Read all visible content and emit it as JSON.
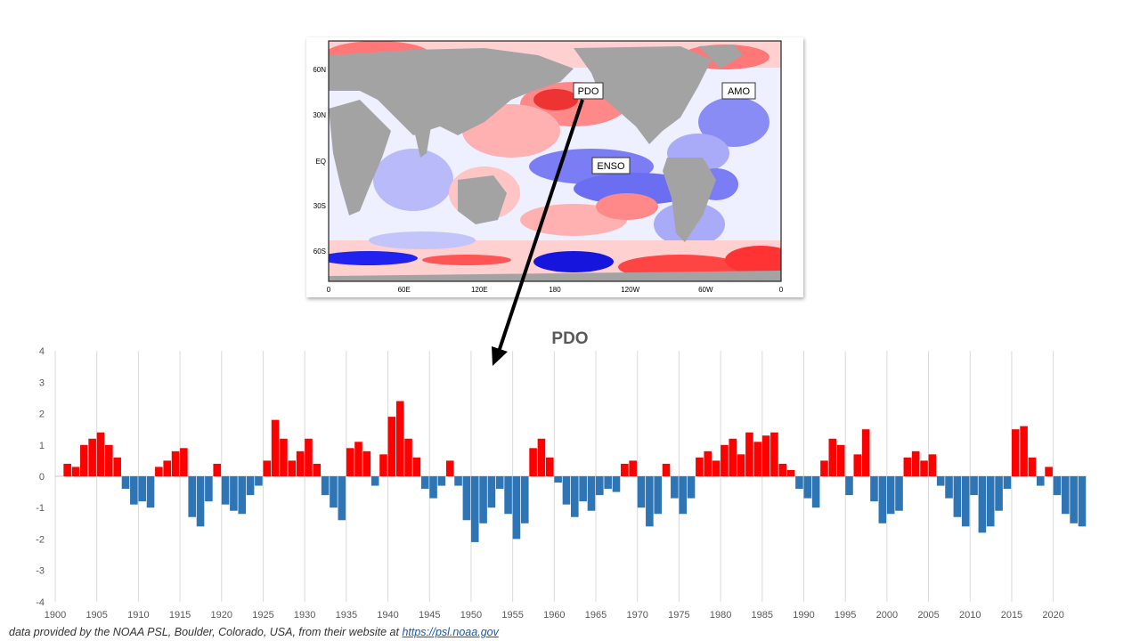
{
  "map": {
    "lat_labels": [
      "60N",
      "30N",
      "EQ",
      "30S",
      "60S"
    ],
    "lon_labels": [
      "0",
      "60E",
      "120E",
      "180",
      "120W",
      "60W",
      "0"
    ],
    "region_labels": {
      "pdo": "PDO",
      "amo": "AMO",
      "enso": "ENSO"
    },
    "colors": {
      "land": "#a3a3a3",
      "warm": "#f06060",
      "cool": "#5a5cf0",
      "ocean": "#eef0ff"
    }
  },
  "chart_data": {
    "type": "bar",
    "title": "PDO",
    "xlabel": "",
    "ylabel": "",
    "ylim": [
      -4,
      4
    ],
    "yticks": [
      4,
      3,
      2,
      1,
      0,
      -1,
      -2,
      -3,
      -4
    ],
    "xlim": [
      1900,
      2024
    ],
    "xticks": [
      1900,
      1905,
      1910,
      1915,
      1920,
      1925,
      1930,
      1935,
      1940,
      1945,
      1950,
      1955,
      1960,
      1965,
      1970,
      1975,
      1980,
      1985,
      1990,
      1995,
      2000,
      2005,
      2010,
      2015,
      2020
    ],
    "resolution": "annual anomaly (monthly bars in original)",
    "years": [
      1901,
      1902,
      1903,
      1904,
      1905,
      1906,
      1907,
      1908,
      1909,
      1910,
      1911,
      1912,
      1913,
      1914,
      1915,
      1916,
      1917,
      1918,
      1919,
      1920,
      1921,
      1922,
      1923,
      1924,
      1925,
      1926,
      1927,
      1928,
      1929,
      1930,
      1931,
      1932,
      1933,
      1934,
      1935,
      1936,
      1937,
      1938,
      1939,
      1940,
      1941,
      1942,
      1943,
      1944,
      1945,
      1946,
      1947,
      1948,
      1949,
      1950,
      1951,
      1952,
      1953,
      1954,
      1955,
      1956,
      1957,
      1958,
      1959,
      1960,
      1961,
      1962,
      1963,
      1964,
      1965,
      1966,
      1967,
      1968,
      1969,
      1970,
      1971,
      1972,
      1973,
      1974,
      1975,
      1976,
      1977,
      1978,
      1979,
      1980,
      1981,
      1982,
      1983,
      1984,
      1985,
      1986,
      1987,
      1988,
      1989,
      1990,
      1991,
      1992,
      1993,
      1994,
      1995,
      1996,
      1997,
      1998,
      1999,
      2000,
      2001,
      2002,
      2003,
      2004,
      2005,
      2006,
      2007,
      2008,
      2009,
      2010,
      2011,
      2012,
      2013,
      2014,
      2015,
      2016,
      2017,
      2018,
      2019,
      2020,
      2021,
      2022,
      2023
    ],
    "values": [
      0.4,
      0.3,
      1.0,
      1.2,
      1.4,
      1.0,
      0.6,
      -0.4,
      -0.9,
      -0.8,
      -1.0,
      0.3,
      0.5,
      0.8,
      0.9,
      -1.3,
      -1.6,
      -0.8,
      0.4,
      -0.9,
      -1.1,
      -1.2,
      -0.6,
      -0.3,
      0.5,
      1.8,
      1.2,
      0.5,
      0.8,
      1.2,
      0.4,
      -0.6,
      -1.0,
      -1.4,
      0.9,
      1.1,
      0.8,
      -0.3,
      0.7,
      1.9,
      2.4,
      1.2,
      0.6,
      -0.4,
      -0.7,
      -0.3,
      0.5,
      -0.3,
      -1.4,
      -2.1,
      -1.5,
      -1.0,
      -0.4,
      -1.2,
      -2.0,
      -1.5,
      0.9,
      1.2,
      0.6,
      -0.2,
      -0.9,
      -1.3,
      -0.8,
      -1.1,
      -0.6,
      -0.4,
      -0.5,
      0.4,
      0.5,
      -1.0,
      -1.6,
      -1.2,
      0.4,
      -0.7,
      -1.2,
      -0.7,
      0.6,
      0.8,
      0.5,
      1.0,
      1.2,
      0.7,
      1.4,
      1.1,
      1.3,
      1.4,
      0.4,
      0.2,
      -0.4,
      -0.7,
      -1.0,
      0.5,
      1.2,
      1.0,
      -0.6,
      0.7,
      1.5,
      -0.8,
      -1.5,
      -1.2,
      -1.1,
      0.6,
      0.8,
      0.5,
      0.7,
      -0.3,
      -0.7,
      -1.3,
      -1.6,
      -0.6,
      -1.8,
      -1.6,
      -1.1,
      -0.4,
      1.5,
      1.6,
      0.6,
      -0.3,
      0.3,
      -0.6,
      -1.2,
      -1.5,
      -1.6
    ],
    "positive_color": "#ff0000",
    "negative_color": "#2e75b6"
  },
  "footnote": {
    "prefix": "data provided by the NOAA PSL, Boulder, Colorado, USA, from their website at ",
    "link": "https://psl.noaa.gov"
  }
}
